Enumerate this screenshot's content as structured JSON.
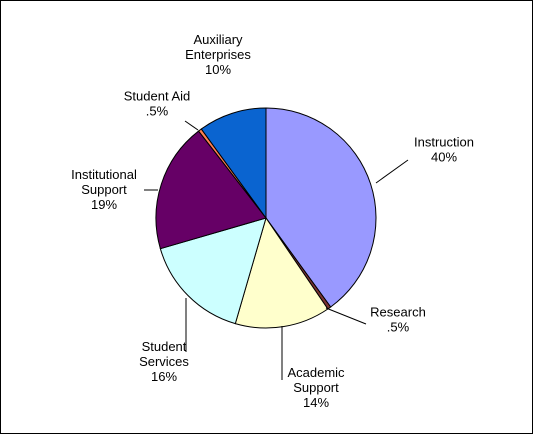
{
  "chart_data": {
    "type": "pie",
    "title": "",
    "legend": "none",
    "slices": [
      {
        "name": "Instruction",
        "value": 40,
        "label": [
          "Instruction",
          "40%"
        ],
        "color": "#9999ff"
      },
      {
        "name": "Research",
        "value": 0.5,
        "label": [
          "Research",
          ".5%"
        ],
        "color": "#7a3333"
      },
      {
        "name": "Academic Support",
        "value": 14,
        "label": [
          "Academic",
          "Support",
          "14%"
        ],
        "color": "#ffffcc"
      },
      {
        "name": "Student Services",
        "value": 16,
        "label": [
          "Student",
          "Services",
          "16%"
        ],
        "color": "#ccffff"
      },
      {
        "name": "Institutional Support",
        "value": 19,
        "label": [
          "Institutional",
          "Support",
          "19%"
        ],
        "color": "#660066"
      },
      {
        "name": "Student Aid",
        "value": 0.5,
        "label": [
          "Student Aid",
          ".5%"
        ],
        "color": "#ff7f50"
      },
      {
        "name": "Auxiliary Enterprises",
        "value": 10,
        "label": [
          "Auxiliary",
          "Enterprises",
          "10%"
        ],
        "color": "#0a64d0"
      }
    ]
  }
}
